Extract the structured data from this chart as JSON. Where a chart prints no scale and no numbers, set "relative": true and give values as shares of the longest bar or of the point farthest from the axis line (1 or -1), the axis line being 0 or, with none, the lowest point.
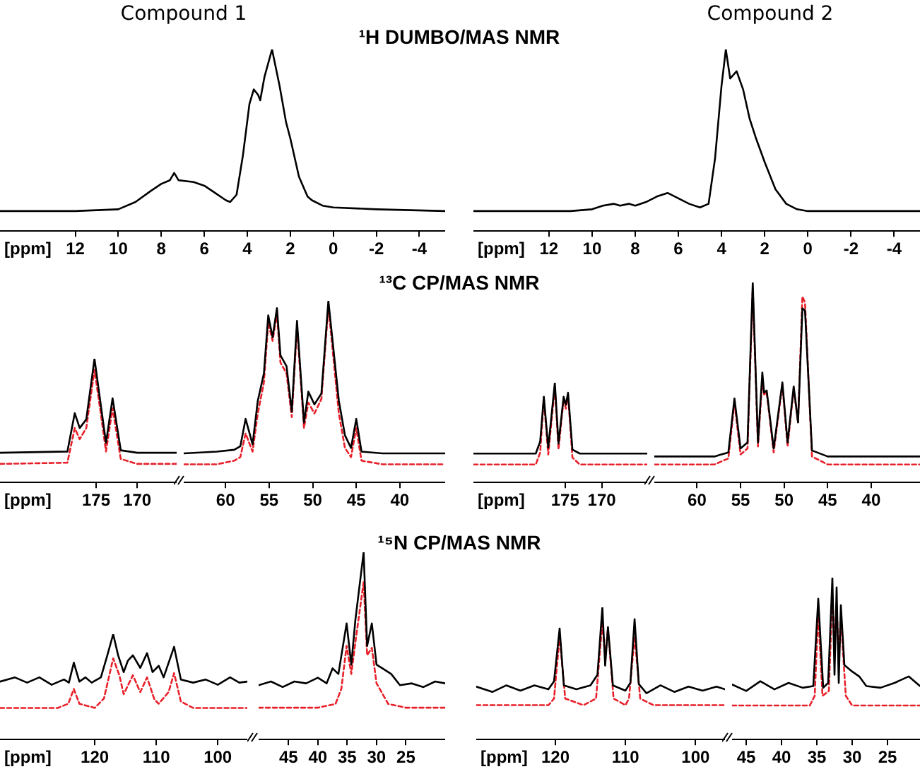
{
  "chart_data": [
    {
      "type": "line",
      "relative": true,
      "title": "Compound 1",
      "xlabel": "[ppm]",
      "xlim": [
        15.5,
        -5.2
      ],
      "xticks": [
        12,
        10,
        8,
        6,
        4,
        2,
        0,
        -2,
        -4
      ],
      "series": [
        {
          "color": "#000000",
          "x": [
            15.5,
            12,
            10,
            9.2,
            8.5,
            8,
            7.6,
            7.4,
            7.2,
            6.5,
            6,
            5.5,
            5,
            4.8,
            4.5,
            4.2,
            3.9,
            3.7,
            3.5,
            3.4,
            3.2,
            2.85,
            2.5,
            2.2,
            2,
            1.6,
            1.2,
            1,
            0.5,
            0,
            -2,
            -5.2
          ],
          "values": [
            0.11,
            0.11,
            0.12,
            0.16,
            0.22,
            0.26,
            0.28,
            0.32,
            0.28,
            0.27,
            0.25,
            0.21,
            0.17,
            0.16,
            0.2,
            0.42,
            0.7,
            0.78,
            0.75,
            0.72,
            0.85,
            1,
            0.8,
            0.6,
            0.51,
            0.3,
            0.19,
            0.17,
            0.14,
            0.13,
            0.12,
            0.11
          ]
        }
      ]
    },
    {
      "type": "line",
      "relative": true,
      "title": "Compound 2",
      "annotations": [
        "¹H DUMBO/MAS NMR"
      ],
      "xlabel": "[ppm]",
      "xlim": [
        15.5,
        -5.2
      ],
      "xticks": [
        12,
        10,
        8,
        6,
        4,
        2,
        0,
        -2,
        -4
      ],
      "series": [
        {
          "color": "#000000",
          "x": [
            15.5,
            11,
            10,
            9.5,
            9,
            8.7,
            8.3,
            8,
            7.5,
            7,
            6.5,
            6,
            5.5,
            5,
            4.6,
            4.3,
            4,
            3.8,
            3.6,
            3.3,
            3,
            2.7,
            2.4,
            2,
            1.5,
            1,
            0.5,
            0,
            -2,
            -5.2
          ],
          "values": [
            0.11,
            0.11,
            0.12,
            0.14,
            0.15,
            0.14,
            0.15,
            0.14,
            0.16,
            0.19,
            0.21,
            0.18,
            0.15,
            0.13,
            0.15,
            0.4,
            0.8,
            1,
            0.84,
            0.88,
            0.78,
            0.62,
            0.51,
            0.38,
            0.23,
            0.15,
            0.12,
            0.11,
            0.11,
            0.11
          ]
        }
      ]
    },
    {
      "type": "line",
      "relative": true,
      "xlabel": "[ppm]",
      "xlim": [
        186.7,
        165.2
      ],
      "xticks": [
        175,
        170
      ],
      "series": [
        {
          "color": "#000000",
          "x": [
            186.7,
            178.5,
            177.6,
            177,
            176.2,
            175.2,
            174.5,
            173.8,
            173,
            172,
            170,
            165.2
          ],
          "values": [
            0.24,
            0.25,
            0.56,
            0.44,
            0.51,
            1,
            0.66,
            0.32,
            0.68,
            0.26,
            0.24,
            0.24
          ]
        },
        {
          "color": "#e8202a",
          "line_style": "dashed",
          "x": [
            186.7,
            178.5,
            177.6,
            177,
            176.2,
            175.2,
            174.5,
            173.8,
            173,
            172,
            170,
            165.2
          ],
          "values": [
            0.15,
            0.16,
            0.44,
            0.35,
            0.44,
            0.91,
            0.59,
            0.25,
            0.6,
            0.19,
            0.15,
            0.15
          ]
        }
      ]
    },
    {
      "type": "line",
      "relative": true,
      "annotations": [
        "¹³C CP/MAS NMR"
      ],
      "xlim": [
        64.8,
        34.8
      ],
      "xticks": [
        60,
        55,
        50,
        45,
        40
      ],
      "series": [
        {
          "color": "#000000",
          "x": [
            64.8,
            61,
            59,
            58.3,
            57.7,
            56.9,
            56.3,
            55.6,
            55.1,
            54.6,
            54.1,
            53.7,
            53,
            52.4,
            51.8,
            51,
            50.5,
            49.8,
            49,
            48.2,
            47,
            46.3,
            45.6,
            45,
            44.4,
            42,
            34.8
          ],
          "values": [
            0.16,
            0.17,
            0.18,
            0.2,
            0.35,
            0.21,
            0.45,
            0.6,
            0.92,
            0.8,
            0.96,
            0.7,
            0.64,
            0.39,
            0.89,
            0.33,
            0.5,
            0.43,
            0.49,
            1,
            0.45,
            0.26,
            0.19,
            0.35,
            0.17,
            0.16,
            0.16
          ]
        },
        {
          "color": "#e8202a",
          "line_style": "dashed",
          "x": [
            64.8,
            61,
            59,
            58.3,
            57.7,
            56.9,
            56.3,
            55.6,
            55.1,
            54.6,
            54.1,
            53.7,
            53,
            52.4,
            51.8,
            51,
            50.5,
            49.8,
            49,
            48.2,
            47,
            46.3,
            45.6,
            45,
            44.4,
            42,
            34.8
          ],
          "values": [
            0.1,
            0.1,
            0.12,
            0.14,
            0.27,
            0.17,
            0.38,
            0.55,
            0.88,
            0.78,
            0.93,
            0.66,
            0.6,
            0.36,
            0.86,
            0.3,
            0.44,
            0.38,
            0.46,
            0.97,
            0.38,
            0.19,
            0.14,
            0.3,
            0.12,
            0.1,
            0.1
          ]
        }
      ]
    },
    {
      "type": "line",
      "relative": true,
      "xlabel": "[ppm]",
      "xlim": [
        187.5,
        163.8
      ],
      "xticks": [
        175,
        170
      ],
      "series": [
        {
          "color": "#000000",
          "x": [
            187.5,
            179,
            178.4,
            177.9,
            177.3,
            176.4,
            175.9,
            175.2,
            174.9,
            174.6,
            174,
            173,
            163.8
          ],
          "values": [
            0.29,
            0.29,
            0.41,
            0.86,
            0.35,
            1,
            0.39,
            0.86,
            0.78,
            0.9,
            0.33,
            0.29,
            0.29
          ]
        },
        {
          "color": "#e8202a",
          "line_style": "dashed",
          "x": [
            187.5,
            179,
            178.4,
            177.9,
            177.3,
            176.4,
            175.9,
            175.2,
            174.9,
            174.6,
            174,
            173,
            163.8
          ],
          "values": [
            0.18,
            0.18,
            0.3,
            0.84,
            0.28,
            0.96,
            0.33,
            0.84,
            0.74,
            0.88,
            0.25,
            0.18,
            0.18
          ]
        }
      ]
    },
    {
      "type": "line",
      "relative": true,
      "xlim": [
        64.9,
        34.4
      ],
      "xticks": [
        60,
        55,
        50,
        45,
        40
      ],
      "series": [
        {
          "color": "#000000",
          "x": [
            64.9,
            58,
            56.4,
            55.7,
            55,
            54.2,
            53.6,
            53,
            52.5,
            52.3,
            52,
            51.2,
            50.2,
            49.6,
            48.9,
            48.4,
            47.9,
            47.6,
            46.8,
            45,
            34.4
          ],
          "values": [
            0.13,
            0.13,
            0.15,
            0.42,
            0.17,
            0.2,
            1,
            0.2,
            0.55,
            0.45,
            0.46,
            0.17,
            0.5,
            0.2,
            0.48,
            0.3,
            0.87,
            0.86,
            0.16,
            0.13,
            0.13
          ]
        },
        {
          "color": "#e8202a",
          "line_style": "dashed",
          "x": [
            64.9,
            58,
            56.4,
            55.7,
            55,
            54.2,
            53.6,
            53,
            52.5,
            52.3,
            52,
            51.2,
            50.2,
            49.6,
            48.9,
            48.4,
            47.9,
            47.6,
            46.8,
            45,
            34.4
          ],
          "values": [
            0.09,
            0.09,
            0.12,
            0.4,
            0.14,
            0.17,
            0.97,
            0.18,
            0.52,
            0.44,
            0.45,
            0.15,
            0.49,
            0.18,
            0.47,
            0.3,
            0.93,
            0.9,
            0.13,
            0.09,
            0.09
          ]
        }
      ]
    },
    {
      "type": "line",
      "relative": true,
      "xlabel": "[ppm]",
      "xlim": [
        135.4,
        95.2
      ],
      "xticks": [
        120,
        110,
        100
      ],
      "series": [
        {
          "color": "#000000",
          "x": [
            135.4,
            133,
            131,
            129,
            127,
            125,
            124.2,
            123.4,
            122.5,
            121.5,
            120.5,
            119,
            118,
            117,
            116.2,
            115.3,
            114.6,
            113.8,
            112.6,
            111.5,
            110.6,
            109.6,
            108.8,
            107.1,
            106,
            104,
            102,
            100,
            98,
            96.5,
            95.2
          ],
          "values": [
            0.55,
            0.59,
            0.54,
            0.59,
            0.52,
            0.57,
            0.54,
            0.73,
            0.55,
            0.59,
            0.54,
            0.59,
            0.79,
            1,
            0.8,
            0.64,
            0.75,
            0.8,
            0.68,
            0.82,
            0.64,
            0.7,
            0.59,
            0.88,
            0.57,
            0.54,
            0.57,
            0.52,
            0.59,
            0.54,
            0.55
          ]
        },
        {
          "color": "#e8202a",
          "line_style": "dashed",
          "x": [
            135.4,
            126,
            124.3,
            123.4,
            122.5,
            120,
            118.5,
            117,
            116,
            115.3,
            113.8,
            112.6,
            111.5,
            110.3,
            109.6,
            108,
            107.1,
            106,
            104,
            95.2
          ],
          "values": [
            0.3,
            0.3,
            0.34,
            0.48,
            0.34,
            0.3,
            0.39,
            0.77,
            0.61,
            0.43,
            0.61,
            0.45,
            0.59,
            0.38,
            0.34,
            0.45,
            0.63,
            0.36,
            0.3,
            0.3
          ]
        }
      ]
    },
    {
      "type": "line",
      "relative": true,
      "annotations": [
        "¹⁵N CP/MAS NMR"
      ],
      "xlim": [
        50.1,
        18.3
      ],
      "xticks": [
        45,
        40,
        35,
        30,
        25
      ],
      "series": [
        {
          "color": "#000000",
          "x": [
            50.1,
            48,
            46,
            44,
            42,
            40,
            38.5,
            37.5,
            36.5,
            35.1,
            34.3,
            33.6,
            32.2,
            31.6,
            30.8,
            30,
            29,
            27.5,
            26,
            24,
            22,
            20,
            18.3
          ],
          "values": [
            0.29,
            0.31,
            0.28,
            0.31,
            0.3,
            0.33,
            0.3,
            0.38,
            0.35,
            0.62,
            0.4,
            0.64,
            1,
            0.5,
            0.62,
            0.4,
            0.38,
            0.35,
            0.29,
            0.3,
            0.28,
            0.31,
            0.3
          ]
        },
        {
          "color": "#e8202a",
          "line_style": "dashed",
          "x": [
            50.1,
            40,
            37,
            36,
            35.1,
            34.3,
            33.6,
            32.2,
            31.6,
            30.8,
            30,
            28,
            25,
            18.3
          ],
          "values": [
            0.17,
            0.17,
            0.19,
            0.27,
            0.5,
            0.35,
            0.52,
            0.84,
            0.45,
            0.49,
            0.3,
            0.19,
            0.17,
            0.17
          ]
        }
      ]
    },
    {
      "type": "line",
      "relative": true,
      "xlabel": "[ppm]",
      "xlim": [
        131.3,
        95.8
      ],
      "xticks": [
        120,
        110,
        100
      ],
      "series": [
        {
          "color": "#000000",
          "x": [
            131.3,
            129,
            127,
            125,
            123,
            121,
            120.2,
            119.4,
            118.8,
            117,
            115,
            114,
            113.3,
            112.9,
            112.5,
            111.8,
            110,
            109.3,
            108.7,
            108.1,
            107,
            105,
            103,
            101,
            99,
            97,
            95.8
          ],
          "values": [
            0.4,
            0.36,
            0.41,
            0.37,
            0.41,
            0.38,
            0.44,
            0.84,
            0.41,
            0.38,
            0.41,
            0.49,
            1,
            0.56,
            0.85,
            0.41,
            0.37,
            0.43,
            0.91,
            0.42,
            0.35,
            0.41,
            0.36,
            0.4,
            0.37,
            0.4,
            0.38
          ]
        },
        {
          "color": "#e8202a",
          "line_style": "dashed",
          "x": [
            131.3,
            121,
            120.2,
            119.4,
            118.6,
            116,
            114.2,
            113.3,
            112.9,
            112.5,
            111.7,
            110,
            109.5,
            108.7,
            107.9,
            106,
            95.8
          ],
          "values": [
            0.26,
            0.26,
            0.31,
            0.78,
            0.31,
            0.26,
            0.31,
            0.89,
            0.62,
            0.84,
            0.31,
            0.26,
            0.31,
            0.78,
            0.31,
            0.26,
            0.26
          ]
        }
      ]
    },
    {
      "type": "line",
      "relative": true,
      "xlim": [
        47,
        20.4
      ],
      "xticks": [
        45,
        40,
        35,
        30,
        25
      ],
      "series": [
        {
          "color": "#000000",
          "x": [
            47,
            45,
            43,
            41,
            39,
            37,
            35.5,
            34.8,
            34.1,
            33.4,
            32.8,
            32.5,
            32.2,
            31.9,
            31.6,
            31.1,
            30,
            29,
            28,
            26,
            24,
            22,
            20.4
          ],
          "values": [
            0.34,
            0.3,
            0.36,
            0.31,
            0.35,
            0.32,
            0.33,
            0.87,
            0.32,
            0.35,
            1,
            0.4,
            0.94,
            0.35,
            0.83,
            0.46,
            0.42,
            0.39,
            0.33,
            0.32,
            0.35,
            0.39,
            0.33
          ]
        },
        {
          "color": "#e8202a",
          "line_style": "dashed",
          "x": [
            47,
            36,
            35.3,
            34.8,
            34.2,
            33.3,
            32.8,
            32.5,
            32.2,
            31.9,
            31.6,
            30.9,
            30,
            20.4
          ],
          "values": [
            0.21,
            0.21,
            0.27,
            0.78,
            0.27,
            0.3,
            0.9,
            0.55,
            0.84,
            0.5,
            0.75,
            0.27,
            0.21,
            0.21
          ]
        }
      ]
    }
  ]
}
